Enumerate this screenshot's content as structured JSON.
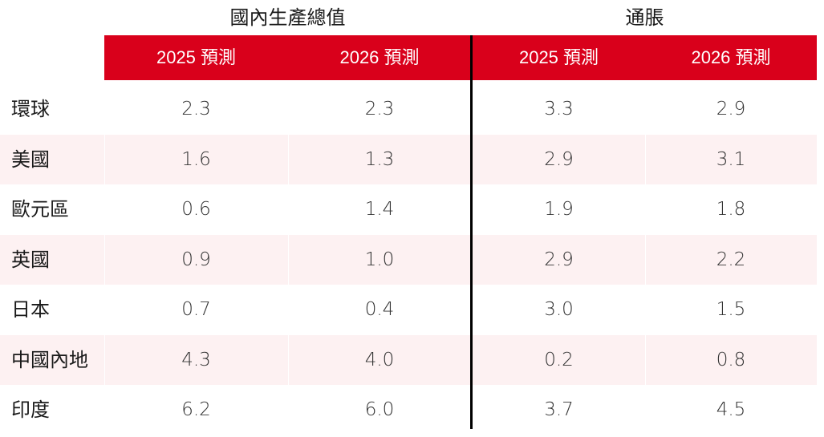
{
  "groups": {
    "gdp": "國內生產總值",
    "inflation": "通脹"
  },
  "columns": [
    "2025 預測",
    "2026 預測",
    "2025 預測",
    "2026 預測"
  ],
  "rows": [
    {
      "label": "環球",
      "values": [
        "2.3",
        "2.3",
        "3.3",
        "2.9"
      ]
    },
    {
      "label": "美國",
      "values": [
        "1.6",
        "1.3",
        "2.9",
        "3.1"
      ]
    },
    {
      "label": "歐元區",
      "values": [
        "0.6",
        "1.4",
        "1.9",
        "1.8"
      ]
    },
    {
      "label": "英國",
      "values": [
        "0.9",
        "1.0",
        "2.9",
        "2.2"
      ]
    },
    {
      "label": "日本",
      "values": [
        "0.7",
        "0.4",
        "3.0",
        "1.5"
      ]
    },
    {
      "label": "中國內地",
      "values": [
        "4.3",
        "4.0",
        "0.2",
        "0.8"
      ]
    },
    {
      "label": "印度",
      "values": [
        "6.2",
        "6.0",
        "3.7",
        "4.5"
      ]
    }
  ],
  "colors": {
    "header": "#d9001b",
    "stripe": "#fdf1f2",
    "divider": "#000000"
  }
}
